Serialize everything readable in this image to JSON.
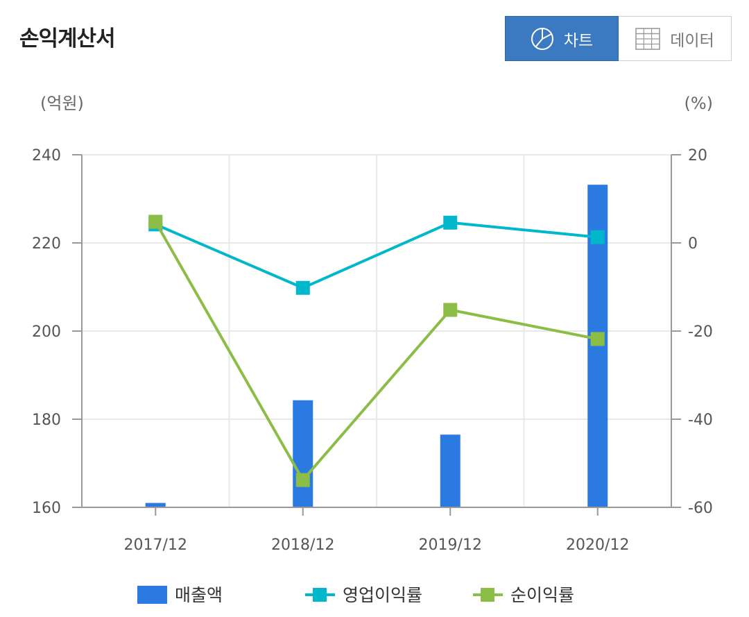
{
  "header": {
    "title": "손익계산서",
    "toggle": {
      "chart_label": "차트",
      "data_label": "데이터",
      "active": "chart"
    }
  },
  "chart_data": {
    "type": "bar+line",
    "categories": [
      "2017/12",
      "2018/12",
      "2019/12",
      "2020/12"
    ],
    "left_axis": {
      "unit": "(억원)",
      "min": 160,
      "max": 240,
      "ticks": [
        160,
        180,
        200,
        220,
        240
      ]
    },
    "right_axis": {
      "unit": "(%)",
      "min": -60,
      "max": 20,
      "ticks": [
        -60,
        -40,
        -20,
        0,
        20
      ]
    },
    "grid": true,
    "legend_position": "bottom",
    "series": [
      {
        "name": "매출액",
        "type": "bar",
        "axis": "left",
        "color": "#2a7ae2",
        "values": [
          161,
          184.3,
          176.5,
          233.2
        ]
      },
      {
        "name": "영업이익률",
        "type": "line",
        "axis": "right",
        "color": "#00b7cc",
        "values": [
          4.2,
          -10.2,
          4.6,
          1.3
        ]
      },
      {
        "name": "순이익률",
        "type": "line",
        "axis": "right",
        "color": "#8bbd47",
        "values": [
          4.8,
          -53.8,
          -15.2,
          -21.8
        ]
      }
    ]
  }
}
